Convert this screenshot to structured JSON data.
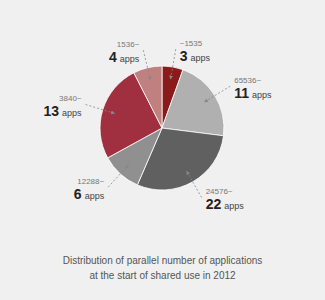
{
  "chart_data": {
    "type": "pie",
    "title": "Distribution of parallel number of applications",
    "subtitle": "at the start of shared use in 2012",
    "categories": [
      "~1535",
      "65536~",
      "24576~",
      "12288~",
      "3840~",
      "1536~"
    ],
    "values": [
      0.055,
      0.215,
      0.295,
      0.105,
      0.255,
      0.075
    ],
    "colors": [
      "#8b1a1a",
      "#b0b0b0",
      "#606060",
      "#909090",
      "#a03040",
      "#c08080"
    ],
    "annotations": [
      {
        "number": 3,
        "unit": "apps"
      },
      {
        "number": 11,
        "unit": "apps"
      },
      {
        "number": 22,
        "unit": "apps"
      },
      {
        "number": 6,
        "unit": "apps"
      },
      {
        "number": 13,
        "unit": "apps"
      },
      {
        "number": 4,
        "unit": "apps"
      }
    ]
  }
}
